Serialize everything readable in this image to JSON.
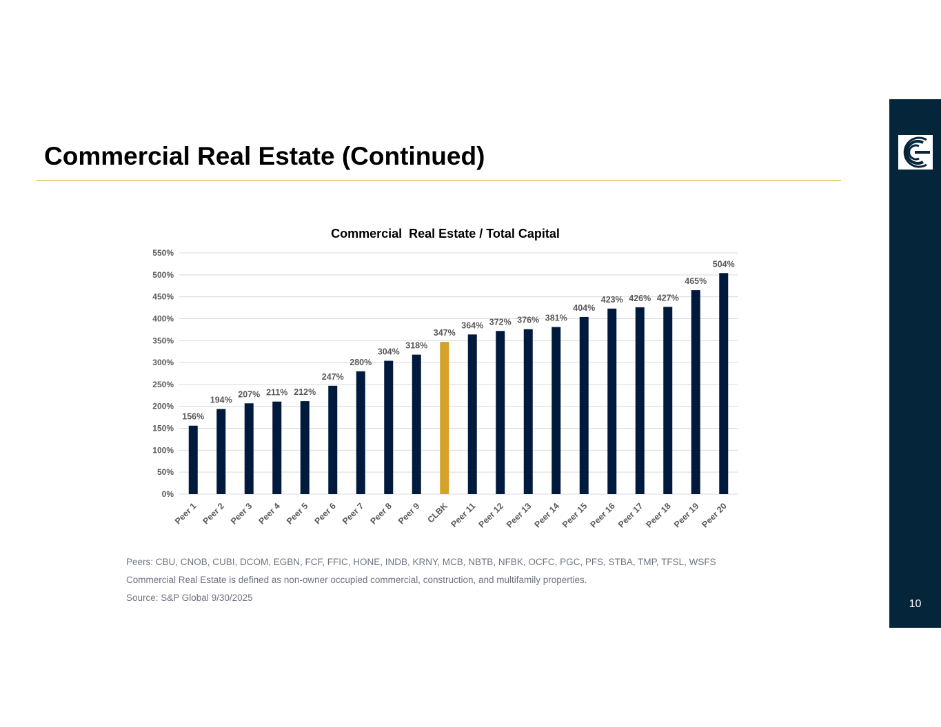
{
  "slide": {
    "title": "Commercial Real Estate (Continued)",
    "page_number": "10"
  },
  "colors": {
    "accent_gold": "#d4a22b",
    "bar_navy": "#001a3d",
    "highlight_bar": "#d4a22b",
    "sidebar": "#04253a"
  },
  "chart_data": {
    "type": "bar",
    "title": "Commercial  Real Estate / Total Capital",
    "xlabel": "",
    "ylabel": "",
    "ylim": [
      0,
      550
    ],
    "yticks": [
      "0%",
      "50%",
      "100%",
      "150%",
      "200%",
      "250%",
      "300%",
      "350%",
      "400%",
      "450%",
      "500%",
      "550%"
    ],
    "grid": true,
    "categories": [
      "Peer 1",
      "Peer 2",
      "Peer 3",
      "Peer 4",
      "Peer 5",
      "Peer 6",
      "Peer 7",
      "Peer 8",
      "Peer 9",
      "CLBK",
      "Peer 11",
      "Peer 12",
      "Peer 13",
      "Peer 14",
      "Peer 15",
      "Peer 16",
      "Peer 17",
      "Peer 18",
      "Peer 19",
      "Peer 20"
    ],
    "values": [
      156,
      194,
      207,
      211,
      212,
      247,
      280,
      304,
      318,
      347,
      364,
      372,
      376,
      381,
      404,
      423,
      426,
      427,
      465,
      504
    ],
    "labels": [
      "156%",
      "194%",
      "207%",
      "211%",
      "212%",
      "247%",
      "280%",
      "304%",
      "318%",
      "347%",
      "364%",
      "372%",
      "376%",
      "381%",
      "404%",
      "423%",
      "426%",
      "427%",
      "465%",
      "504%"
    ],
    "highlight": "CLBK"
  },
  "notes": {
    "peers": "Peers: CBU, CNOB, CUBI, DCOM, EGBN, FCF, FFIC, HONE, INDB, KRNY, MCB, NBTB, NFBK, OCFC, PGC, PFS, STBA, TMP, TFSL, WSFS",
    "definition": "Commercial Real Estate is defined as non-owner occupied commercial, construction, and multifamily properties.",
    "source": "Source: S&P Global 9/30/2025"
  }
}
